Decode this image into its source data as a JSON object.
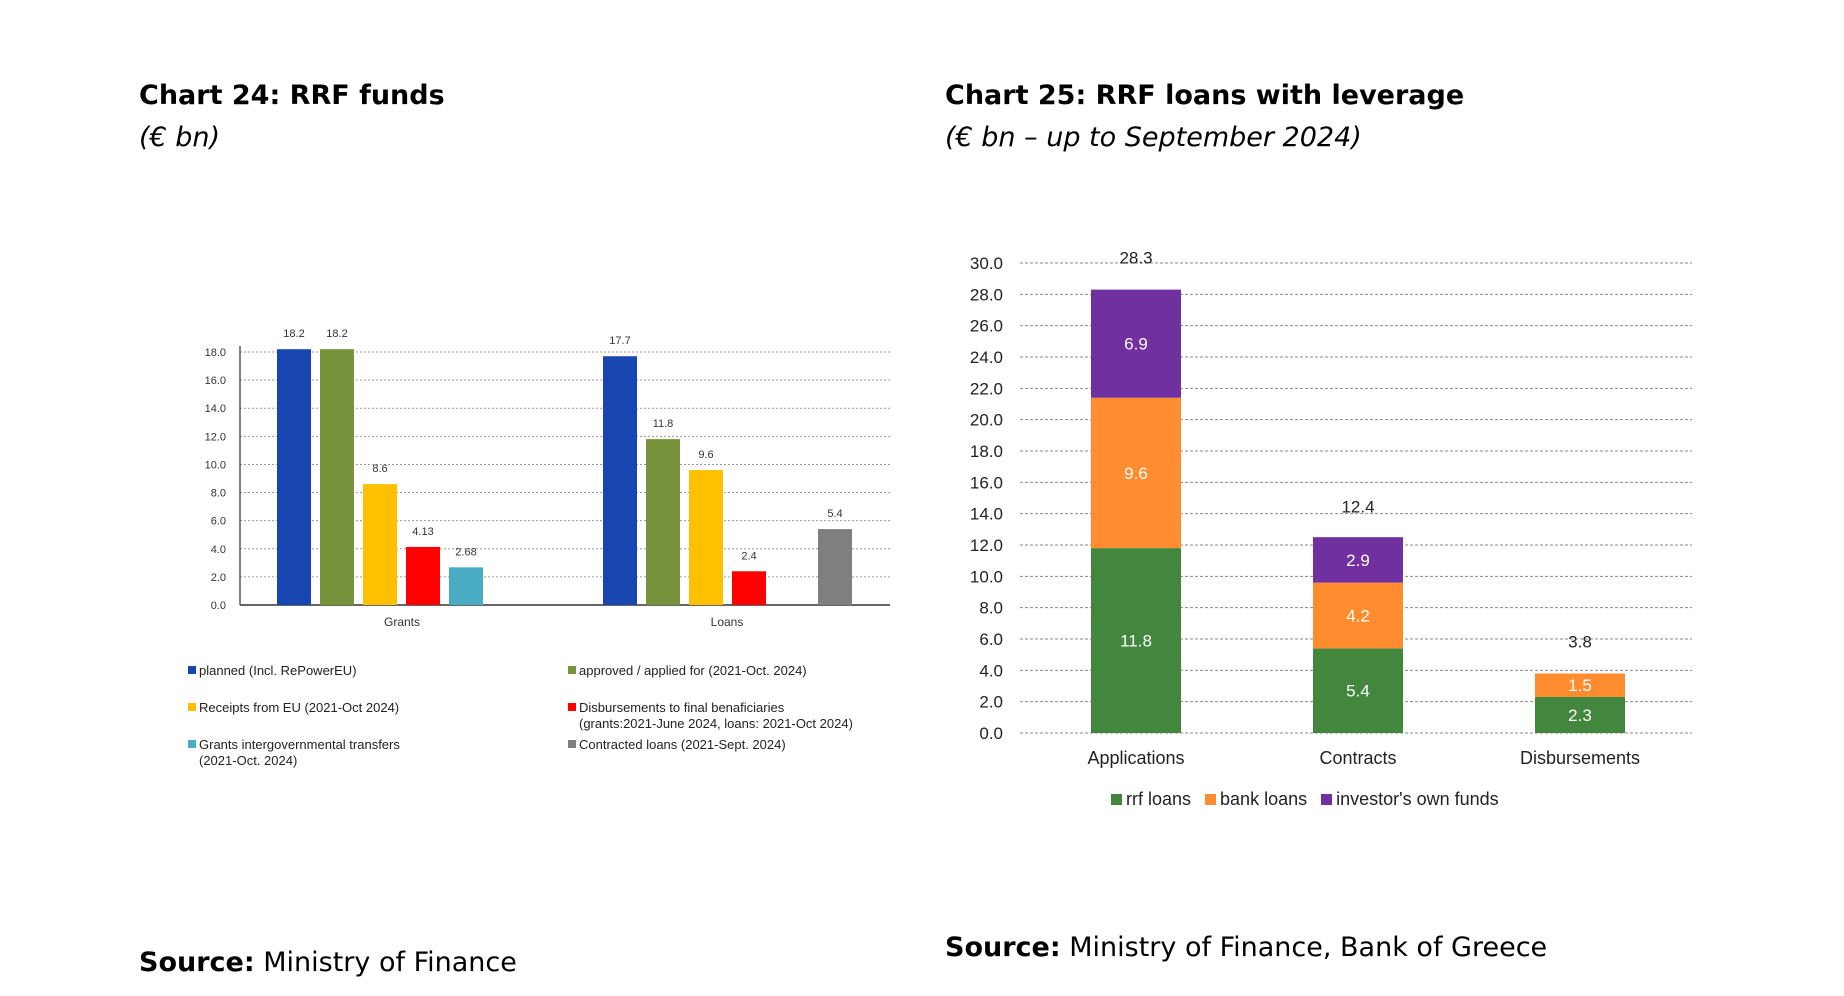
{
  "left": {
    "title": "Chart 24: RRF funds",
    "subtitle": "(€ bn)",
    "source_label": "Source:",
    "source_text": " Ministry of Finance"
  },
  "right": {
    "title": "Chart 25: RRF loans with leverage",
    "subtitle": "(€ bn – up to September 2024)",
    "source_label": "Source:",
    "source_text": " Ministry of Finance, Bank of Greece"
  },
  "chart_data": [
    {
      "type": "bar",
      "categories": [
        "Grants",
        "Loans"
      ],
      "ylim": [
        0,
        18
      ],
      "yticks": [
        "0.0",
        "2.0",
        "4.0",
        "6.0",
        "8.0",
        "10.0",
        "12.0",
        "14.0",
        "16.0",
        "18.0"
      ],
      "series": [
        {
          "name": "planned (Incl. RePowerEU)",
          "color": "#1846b1",
          "values": [
            18.2,
            17.7
          ],
          "labels": [
            "18.2",
            "17.7"
          ]
        },
        {
          "name": "approved / applied for (2021-Oct. 2024)",
          "color": "#77933c",
          "values": [
            18.2,
            11.8
          ],
          "labels": [
            "18.2",
            "11.8"
          ]
        },
        {
          "name": "Receipts from EU (2021-Oct 2024)",
          "color": "#ffc000",
          "values": [
            8.6,
            9.6
          ],
          "labels": [
            "8.6",
            "9.6"
          ]
        },
        {
          "name": "Disbursements to final benaficiaries",
          "name_line2": "(grants:2021-June 2024, loans: 2021-Oct 2024)",
          "color": "#ff0000",
          "values": [
            4.13,
            2.4
          ],
          "labels": [
            "4.13",
            "2.4"
          ]
        },
        {
          "name": "Grants intergovernmental transfers",
          "name_line2": "(2021-Oct. 2024)",
          "color": "#4bacc6",
          "values": [
            2.68,
            null
          ],
          "labels": [
            "2.68",
            ""
          ]
        },
        {
          "name": "Contracted loans (2021-Sept. 2024)",
          "color": "#7f7f7f",
          "values": [
            null,
            5.4
          ],
          "labels": [
            "",
            "5.4"
          ]
        }
      ]
    },
    {
      "type": "bar",
      "stacked": true,
      "categories": [
        "Applications",
        "Contracts",
        "Disbursements"
      ],
      "ylim": [
        0,
        30
      ],
      "yticks": [
        "0.0",
        "2.0",
        "4.0",
        "6.0",
        "8.0",
        "10.0",
        "12.0",
        "14.0",
        "16.0",
        "18.0",
        "20.0",
        "22.0",
        "24.0",
        "26.0",
        "28.0",
        "30.0"
      ],
      "totals": [
        28.3,
        12.4,
        3.8
      ],
      "total_labels": [
        "28.3",
        "12.4",
        "3.8"
      ],
      "series": [
        {
          "name": "rrf loans",
          "color": "#43873f",
          "values": [
            11.8,
            5.4,
            2.3
          ],
          "labels": [
            "11.8",
            "5.4",
            "2.3"
          ]
        },
        {
          "name": "bank loans",
          "color": "#ff8c2f",
          "values": [
            9.6,
            4.2,
            1.5
          ],
          "labels": [
            "9.6",
            "4.2",
            "1.5"
          ]
        },
        {
          "name": "investor's own funds",
          "color": "#7030a0",
          "values": [
            6.9,
            2.9,
            0
          ],
          "labels": [
            "6.9",
            "2.9",
            ""
          ]
        }
      ],
      "legend_position": "bottom"
    }
  ]
}
